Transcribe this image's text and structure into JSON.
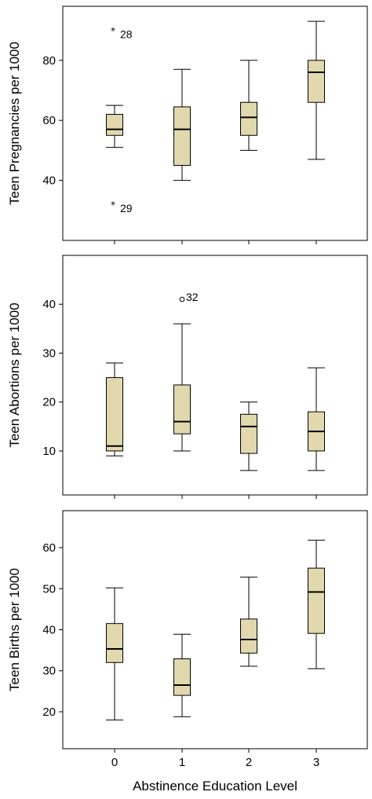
{
  "chart_data": [
    {
      "type": "box",
      "title": "",
      "xlabel": "",
      "ylabel": "Teen Pregnancies per 1000",
      "categories": [
        "0",
        "1",
        "2",
        "3"
      ],
      "y_ticks": [
        40,
        60,
        80
      ],
      "ylim": [
        20,
        98
      ],
      "boxes": [
        {
          "category": "0",
          "min": 51,
          "q1": 55,
          "median": 57,
          "q3": 62,
          "max": 65
        },
        {
          "category": "1",
          "min": 40,
          "q1": 45,
          "median": 57,
          "q3": 64.5,
          "max": 77
        },
        {
          "category": "2",
          "min": 50,
          "q1": 55,
          "median": 61,
          "q3": 66,
          "max": 80
        },
        {
          "category": "3",
          "min": 47,
          "q1": 66,
          "median": 76,
          "q3": 80,
          "max": 93
        }
      ],
      "outliers": [
        {
          "category": "0",
          "value": 90,
          "label": "28",
          "marker": "star"
        },
        {
          "category": "0",
          "value": 32,
          "label": "29",
          "marker": "star"
        }
      ],
      "grid": false
    },
    {
      "type": "box",
      "title": "",
      "xlabel": "",
      "ylabel": "Teen Abortions per 1000",
      "categories": [
        "0",
        "1",
        "2",
        "3"
      ],
      "y_ticks": [
        10,
        20,
        30,
        40
      ],
      "ylim": [
        1,
        50
      ],
      "boxes": [
        {
          "category": "0",
          "min": 9,
          "q1": 10,
          "median": 11,
          "q3": 25,
          "max": 28
        },
        {
          "category": "1",
          "min": 10,
          "q1": 13.5,
          "median": 16,
          "q3": 23.5,
          "max": 36
        },
        {
          "category": "2",
          "min": 6,
          "q1": 9.5,
          "median": 15,
          "q3": 17.5,
          "max": 20
        },
        {
          "category": "3",
          "min": 6,
          "q1": 10,
          "median": 14,
          "q3": 18,
          "max": 27
        }
      ],
      "outliers": [
        {
          "category": "1",
          "value": 41,
          "label": "32",
          "marker": "circle"
        }
      ],
      "grid": false
    },
    {
      "type": "box",
      "title": "",
      "xlabel": "Abstinence Education Level",
      "ylabel": "Teen Births per 1000",
      "categories": [
        "0",
        "1",
        "2",
        "3"
      ],
      "y_ticks": [
        20,
        30,
        40,
        50,
        60
      ],
      "ylim": [
        11,
        69
      ],
      "boxes": [
        {
          "category": "0",
          "min": 18,
          "q1": 32,
          "median": 35.3,
          "q3": 41.5,
          "max": 50.2
        },
        {
          "category": "1",
          "min": 18.8,
          "q1": 24,
          "median": 26.5,
          "q3": 32.9,
          "max": 38.9
        },
        {
          "category": "2",
          "min": 31.1,
          "q1": 34.3,
          "median": 37.6,
          "q3": 42.6,
          "max": 52.8
        },
        {
          "category": "3",
          "min": 30.5,
          "q1": 39.1,
          "median": 49.2,
          "q3": 55,
          "max": 61.8
        }
      ],
      "outliers": [],
      "grid": false
    }
  ]
}
